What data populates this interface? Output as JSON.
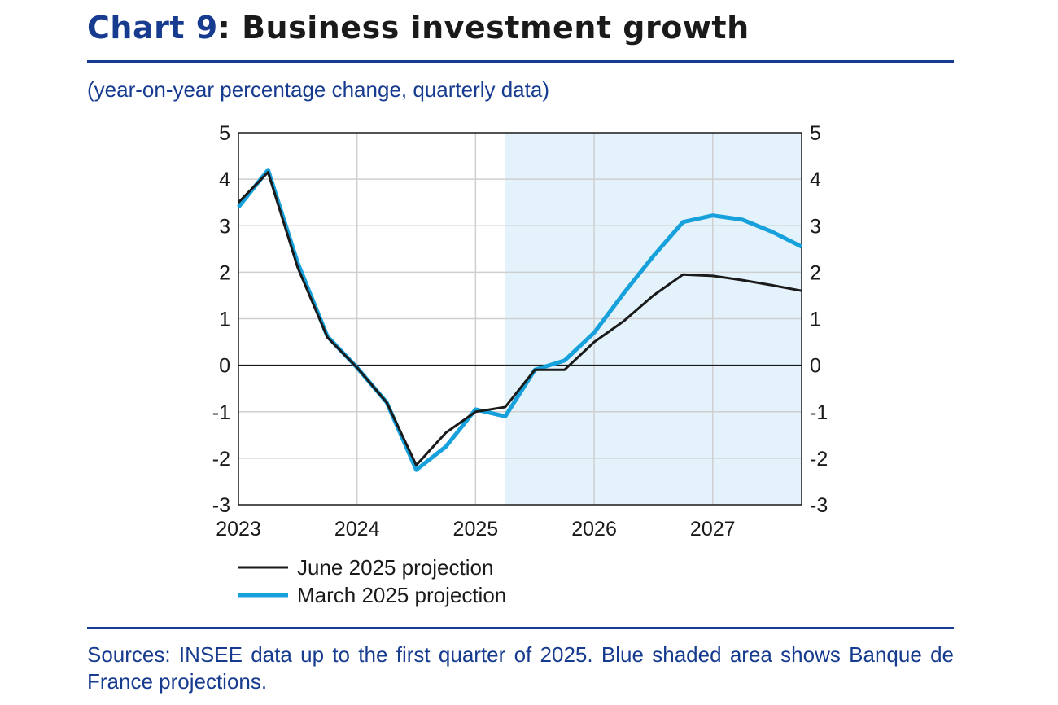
{
  "header": {
    "chart_number": "Chart 9",
    "title_text": ": Business investment growth"
  },
  "subtitle": "(year-on-year percentage change, quarterly data)",
  "sources": "Sources: INSEE data up to the first quarter of 2025. Blue shaded area shows Banque de France projections.",
  "colors": {
    "brand": "#163b8f",
    "june_series": "#1a1a1a",
    "march_series": "#17a1dc",
    "projection_shade": "#e4f3fb"
  },
  "chart_data": {
    "type": "line",
    "title": "Business investment growth",
    "ylabel": "year-on-year percentage change, quarterly data",
    "xlabel": "",
    "ylim": [
      -3,
      5
    ],
    "yticks": [
      "5",
      "4",
      "3",
      "2",
      "1",
      "0",
      "-1",
      "-2",
      "-3"
    ],
    "xlim": [
      2023,
      2027.75
    ],
    "xticks": [
      "2023",
      "2024",
      "2025",
      "2026",
      "2027"
    ],
    "grid": true,
    "projection_shading": {
      "from": 2025.25,
      "to": 2027.75,
      "label": "Banque de France projections"
    },
    "x": [
      2023.0,
      2023.25,
      2023.5,
      2023.75,
      2024.0,
      2024.25,
      2024.5,
      2024.75,
      2025.0,
      2025.25,
      2025.5,
      2025.75,
      2026.0,
      2026.25,
      2026.5,
      2026.75,
      2027.0,
      2027.25,
      2027.5,
      2027.75
    ],
    "series": [
      {
        "name": "June 2025 projection",
        "values": [
          3.5,
          4.15,
          2.1,
          0.6,
          -0.05,
          -0.8,
          -2.15,
          -1.45,
          -1.0,
          -0.9,
          -0.1,
          -0.1,
          0.5,
          0.95,
          1.5,
          1.95,
          1.92,
          1.83,
          1.72,
          1.6
        ]
      },
      {
        "name": "March 2025 projection",
        "values": [
          3.4,
          4.2,
          2.2,
          0.62,
          -0.05,
          -0.8,
          -2.25,
          -1.75,
          -0.95,
          -1.1,
          -0.1,
          0.1,
          0.7,
          1.55,
          2.35,
          3.08,
          3.22,
          3.13,
          2.87,
          2.55
        ]
      }
    ],
    "legend": [
      "June 2025 projection",
      "March 2025 projection"
    ],
    "legend_position": "bottom-left"
  }
}
